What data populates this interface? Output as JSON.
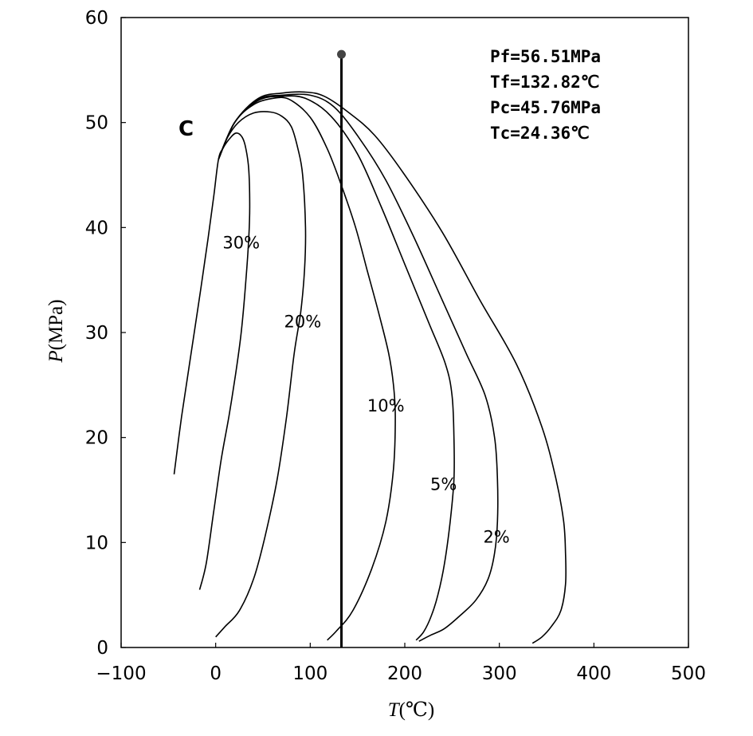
{
  "chart_data": {
    "type": "line",
    "xlabel": {
      "italic": "T",
      "rest": "(℃)"
    },
    "ylabel": {
      "italic": "P",
      "rest": "(MPa)"
    },
    "xlim": [
      -100,
      500
    ],
    "ylim": [
      0,
      60
    ],
    "x_ticks": [
      "−100",
      "0",
      "100",
      "200",
      "300",
      "400",
      "500"
    ],
    "y_ticks": [
      "0",
      "10",
      "20",
      "30",
      "40",
      "50",
      "60"
    ],
    "critical_point_label": "C",
    "info": [
      "Pf=56.51MPa",
      "Tf=132.82℃",
      "Pc=45.76MPa",
      "Tc=24.36℃"
    ],
    "flash_line": {
      "T": 133,
      "P_top": 56.5,
      "P_bottom": 0
    },
    "series": [
      {
        "name": "30%",
        "label_at": [
          27,
          38
        ],
        "points": [
          [
            -44,
            16.5
          ],
          [
            -36,
            22
          ],
          [
            -26,
            28
          ],
          [
            -16,
            34
          ],
          [
            -8,
            39
          ],
          [
            -2,
            43
          ],
          [
            3,
            46.5
          ],
          [
            8,
            47.6
          ],
          [
            16,
            48.6
          ],
          [
            22,
            49
          ],
          [
            28,
            48.6
          ],
          [
            32,
            47.5
          ],
          [
            35,
            45.5
          ],
          [
            36,
            42
          ],
          [
            35,
            39
          ],
          [
            32,
            35
          ],
          [
            27,
            30
          ],
          [
            21,
            26
          ],
          [
            14,
            22
          ],
          [
            6,
            18
          ],
          [
            -2,
            13
          ],
          [
            -10,
            8
          ],
          [
            -17,
            5.5
          ]
        ]
      },
      {
        "name": "20%",
        "label_at": [
          92,
          30.5
        ],
        "points": [
          [
            3,
            46.5
          ],
          [
            12,
            48.5
          ],
          [
            24,
            50
          ],
          [
            40,
            50.9
          ],
          [
            58,
            51
          ],
          [
            70,
            50.6
          ],
          [
            80,
            49.6
          ],
          [
            87,
            47.5
          ],
          [
            92,
            45
          ],
          [
            95,
            40
          ],
          [
            94,
            36
          ],
          [
            90,
            32
          ],
          [
            83,
            28
          ],
          [
            75,
            22
          ],
          [
            65,
            16
          ],
          [
            52,
            10.5
          ],
          [
            40,
            6.5
          ],
          [
            25,
            3.5
          ],
          [
            10,
            2
          ],
          [
            0,
            1
          ]
        ]
      },
      {
        "name": "10%",
        "label_at": [
          180,
          22.5
        ],
        "points": [
          [
            3,
            46.5
          ],
          [
            20,
            50
          ],
          [
            40,
            51.7
          ],
          [
            60,
            52.3
          ],
          [
            78,
            52.2
          ],
          [
            100,
            50.5
          ],
          [
            118,
            47.5
          ],
          [
            133,
            44
          ],
          [
            148,
            40
          ],
          [
            160,
            36
          ],
          [
            172,
            32
          ],
          [
            183,
            28
          ],
          [
            188,
            25
          ],
          [
            190,
            22
          ],
          [
            188,
            17
          ],
          [
            180,
            12
          ],
          [
            165,
            7.5
          ],
          [
            145,
            3.5
          ],
          [
            128,
            1.6
          ],
          [
            118,
            0.7
          ]
        ]
      },
      {
        "name": "5%",
        "label_at": [
          241,
          15
        ],
        "points": [
          [
            3,
            46.5
          ],
          [
            20,
            50
          ],
          [
            45,
            52.1
          ],
          [
            70,
            52.5
          ],
          [
            95,
            52.3
          ],
          [
            122,
            50.6
          ],
          [
            150,
            47
          ],
          [
            175,
            42
          ],
          [
            200,
            36.5
          ],
          [
            225,
            31
          ],
          [
            243,
            27
          ],
          [
            250,
            24
          ],
          [
            252,
            20
          ],
          [
            252,
            16
          ],
          [
            248,
            12
          ],
          [
            242,
            8
          ],
          [
            235,
            5
          ],
          [
            228,
            3
          ],
          [
            220,
            1.5
          ],
          [
            212,
            0.7
          ]
        ]
      },
      {
        "name": "2%",
        "label_at": [
          297,
          10
        ],
        "points": [
          [
            3,
            46.5
          ],
          [
            20,
            50
          ],
          [
            45,
            52.2
          ],
          [
            70,
            52.6
          ],
          [
            100,
            52.6
          ],
          [
            125,
            51.5
          ],
          [
            152,
            48.5
          ],
          [
            180,
            44.5
          ],
          [
            210,
            39
          ],
          [
            240,
            33
          ],
          [
            265,
            28
          ],
          [
            285,
            24
          ],
          [
            295,
            20
          ],
          [
            298,
            16
          ],
          [
            298,
            12
          ],
          [
            295,
            9
          ],
          [
            288,
            6.5
          ],
          [
            275,
            4.5
          ],
          [
            258,
            3
          ],
          [
            242,
            1.8
          ],
          [
            228,
            1.2
          ],
          [
            215,
            0.6
          ]
        ]
      },
      {
        "name": "",
        "label_at": null,
        "points": [
          [
            3,
            46.5
          ],
          [
            20,
            50
          ],
          [
            45,
            52.3
          ],
          [
            70,
            52.8
          ],
          [
            95,
            52.9
          ],
          [
            115,
            52.5
          ],
          [
            140,
            51
          ],
          [
            168,
            48.8
          ],
          [
            200,
            45
          ],
          [
            240,
            39.5
          ],
          [
            280,
            33
          ],
          [
            318,
            27
          ],
          [
            345,
            21
          ],
          [
            360,
            16
          ],
          [
            368,
            12
          ],
          [
            370,
            9
          ],
          [
            370,
            6
          ],
          [
            365,
            3.5
          ],
          [
            355,
            2
          ],
          [
            345,
            1
          ],
          [
            335,
            0.4
          ]
        ]
      }
    ]
  }
}
